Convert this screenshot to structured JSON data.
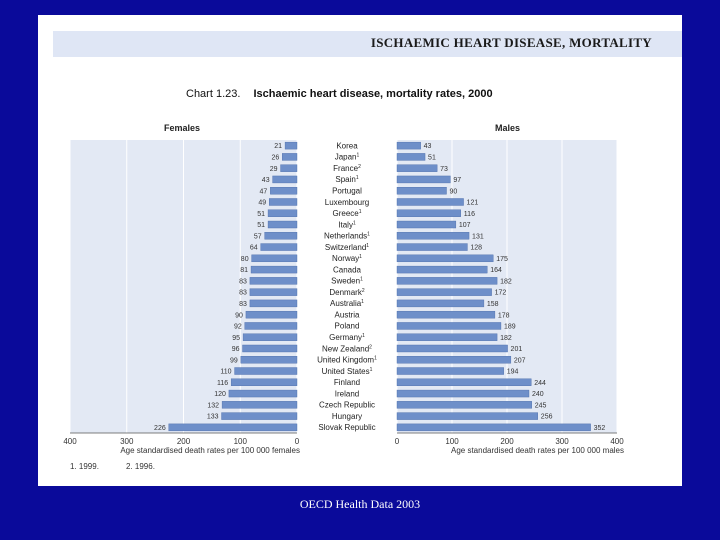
{
  "slide_title": "ISCHAEMIC HEART DISEASE, MORTALITY",
  "chart_number": "Chart 1.23.",
  "chart_title": "Ischaemic heart disease, mortality rates, 2000",
  "footnotes": [
    "1. 1999.",
    "2. 1996."
  ],
  "source": "OECD Health Data 2003",
  "colors": {
    "bar": "#6e8fc9",
    "bar_border": "#4a6ba8",
    "plot_bg": "#e3e9f4",
    "background": "#0a0a9a"
  },
  "chart_data": {
    "type": "bar",
    "orientation": "horizontal-back-to-back",
    "categories": [
      {
        "name": "Korea",
        "sup": ""
      },
      {
        "name": "Japan",
        "sup": "1"
      },
      {
        "name": "France",
        "sup": "2"
      },
      {
        "name": "Spain",
        "sup": "1"
      },
      {
        "name": "Portugal",
        "sup": ""
      },
      {
        "name": "Luxembourg",
        "sup": ""
      },
      {
        "name": "Greece",
        "sup": "1"
      },
      {
        "name": "Italy",
        "sup": "1"
      },
      {
        "name": "Netherlands",
        "sup": "1"
      },
      {
        "name": "Switzerland",
        "sup": "1"
      },
      {
        "name": "Norway",
        "sup": "1"
      },
      {
        "name": "Canada",
        "sup": ""
      },
      {
        "name": "Sweden",
        "sup": "1"
      },
      {
        "name": "Denmark",
        "sup": "2"
      },
      {
        "name": "Australia",
        "sup": "1"
      },
      {
        "name": "Austria",
        "sup": ""
      },
      {
        "name": "Poland",
        "sup": ""
      },
      {
        "name": "Germany",
        "sup": "1"
      },
      {
        "name": "New Zealand",
        "sup": "2"
      },
      {
        "name": "United Kingdom",
        "sup": "1"
      },
      {
        "name": "United States",
        "sup": "1"
      },
      {
        "name": "Finland",
        "sup": ""
      },
      {
        "name": "Ireland",
        "sup": ""
      },
      {
        "name": "Czech Republic",
        "sup": ""
      },
      {
        "name": "Hungary",
        "sup": ""
      },
      {
        "name": "Slovak Republic",
        "sup": ""
      }
    ],
    "series": [
      {
        "name": "Females",
        "values": [
          21,
          26,
          29,
          43,
          47,
          49,
          51,
          51,
          57,
          64,
          80,
          81,
          83,
          83,
          83,
          90,
          92,
          95,
          96,
          99,
          110,
          116,
          120,
          132,
          133,
          226
        ]
      },
      {
        "name": "Males",
        "values": [
          43,
          51,
          73,
          97,
          90,
          121,
          116,
          107,
          131,
          128,
          175,
          164,
          182,
          172,
          158,
          178,
          189,
          182,
          201,
          207,
          194,
          244,
          240,
          245,
          256,
          352
        ]
      }
    ],
    "xlim": [
      0,
      400
    ],
    "x_ticks": [
      0,
      100,
      200,
      300,
      400
    ],
    "xlabel_left": "Age standardised death rates per 100 000 females",
    "xlabel_right": "Age standardised death rates per 100 000 males",
    "grid": true
  }
}
